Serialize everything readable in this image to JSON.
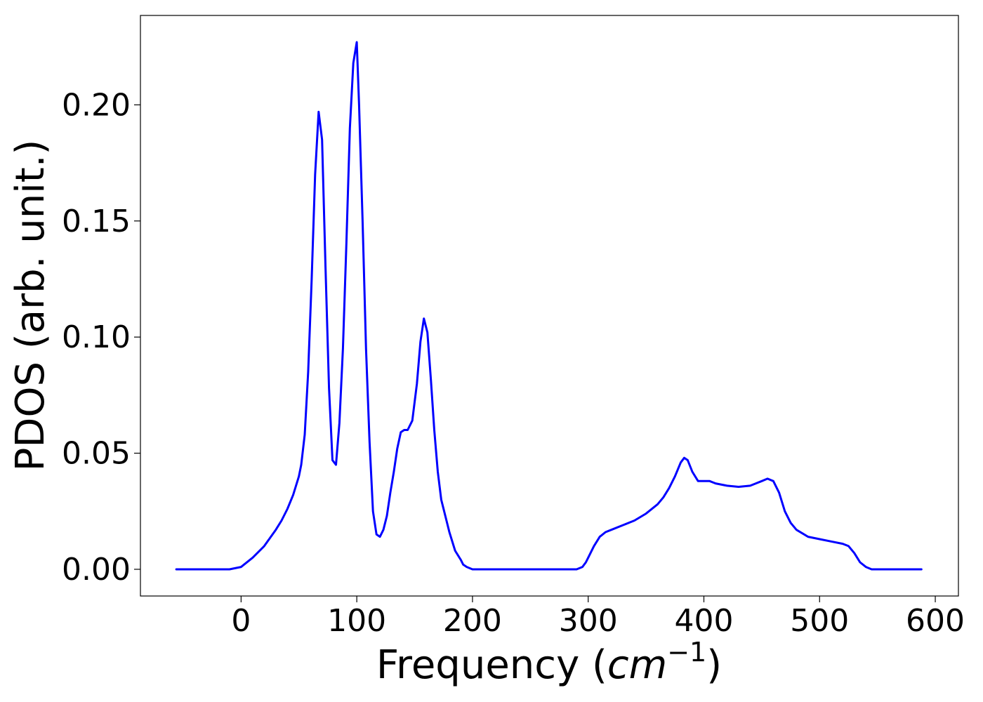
{
  "chart_data": {
    "type": "line",
    "title": "",
    "xlabel": "Frequency",
    "xlabel_unit_base": "cm",
    "xlabel_unit_exp": "−1",
    "ylabel": "PDOS (arb. unit.)",
    "xlim": [
      -87,
      620
    ],
    "ylim": [
      -0.0115,
      0.2385
    ],
    "xticks": [
      0,
      100,
      200,
      300,
      400,
      500,
      600
    ],
    "yticks": [
      0.0,
      0.05,
      0.1,
      0.15,
      0.2
    ],
    "xtick_labels": [
      "0",
      "100",
      "200",
      "300",
      "400",
      "500",
      "600"
    ],
    "ytick_labels": [
      "0.00",
      "0.05",
      "0.10",
      "0.15",
      "0.20"
    ],
    "grid": false,
    "legend": null,
    "series": [
      {
        "color": "#0000ff",
        "x": [
          -56,
          -10,
          0,
          10,
          20,
          30,
          35,
          40,
          45,
          50,
          52,
          55,
          58,
          61,
          64,
          67,
          70,
          73,
          76,
          79,
          82,
          85,
          88,
          91,
          94,
          97,
          100,
          102,
          105,
          108,
          111,
          114,
          117,
          120,
          123,
          126,
          129,
          132,
          135,
          138,
          141,
          144,
          148,
          152,
          155,
          158,
          161,
          164,
          167,
          170,
          173,
          176,
          180,
          185,
          190,
          192,
          195,
          200,
          250,
          290,
          295,
          298,
          300,
          305,
          310,
          315,
          320,
          330,
          340,
          350,
          360,
          365,
          370,
          375,
          380,
          383,
          386,
          390,
          395,
          400,
          405,
          410,
          420,
          430,
          440,
          445,
          450,
          455,
          460,
          465,
          470,
          475,
          480,
          490,
          500,
          510,
          520,
          525,
          530,
          535,
          540,
          545,
          550,
          560,
          588
        ],
        "y": [
          0,
          0,
          0.001,
          0.005,
          0.01,
          0.017,
          0.021,
          0.026,
          0.032,
          0.04,
          0.045,
          0.058,
          0.085,
          0.125,
          0.17,
          0.197,
          0.185,
          0.13,
          0.078,
          0.047,
          0.045,
          0.063,
          0.095,
          0.14,
          0.19,
          0.218,
          0.227,
          0.2,
          0.15,
          0.095,
          0.055,
          0.025,
          0.015,
          0.014,
          0.017,
          0.023,
          0.033,
          0.042,
          0.052,
          0.059,
          0.06,
          0.06,
          0.064,
          0.08,
          0.098,
          0.108,
          0.102,
          0.082,
          0.06,
          0.042,
          0.03,
          0.024,
          0.016,
          0.008,
          0.004,
          0.002,
          0.001,
          0,
          0,
          0,
          0.001,
          0.003,
          0.005,
          0.01,
          0.014,
          0.016,
          0.017,
          0.019,
          0.021,
          0.024,
          0.028,
          0.031,
          0.035,
          0.04,
          0.046,
          0.048,
          0.047,
          0.042,
          0.038,
          0.038,
          0.038,
          0.037,
          0.036,
          0.0355,
          0.036,
          0.037,
          0.038,
          0.039,
          0.038,
          0.033,
          0.025,
          0.02,
          0.017,
          0.014,
          0.013,
          0.012,
          0.011,
          0.01,
          0.007,
          0.003,
          0.001,
          0,
          0,
          0,
          0
        ]
      }
    ]
  }
}
